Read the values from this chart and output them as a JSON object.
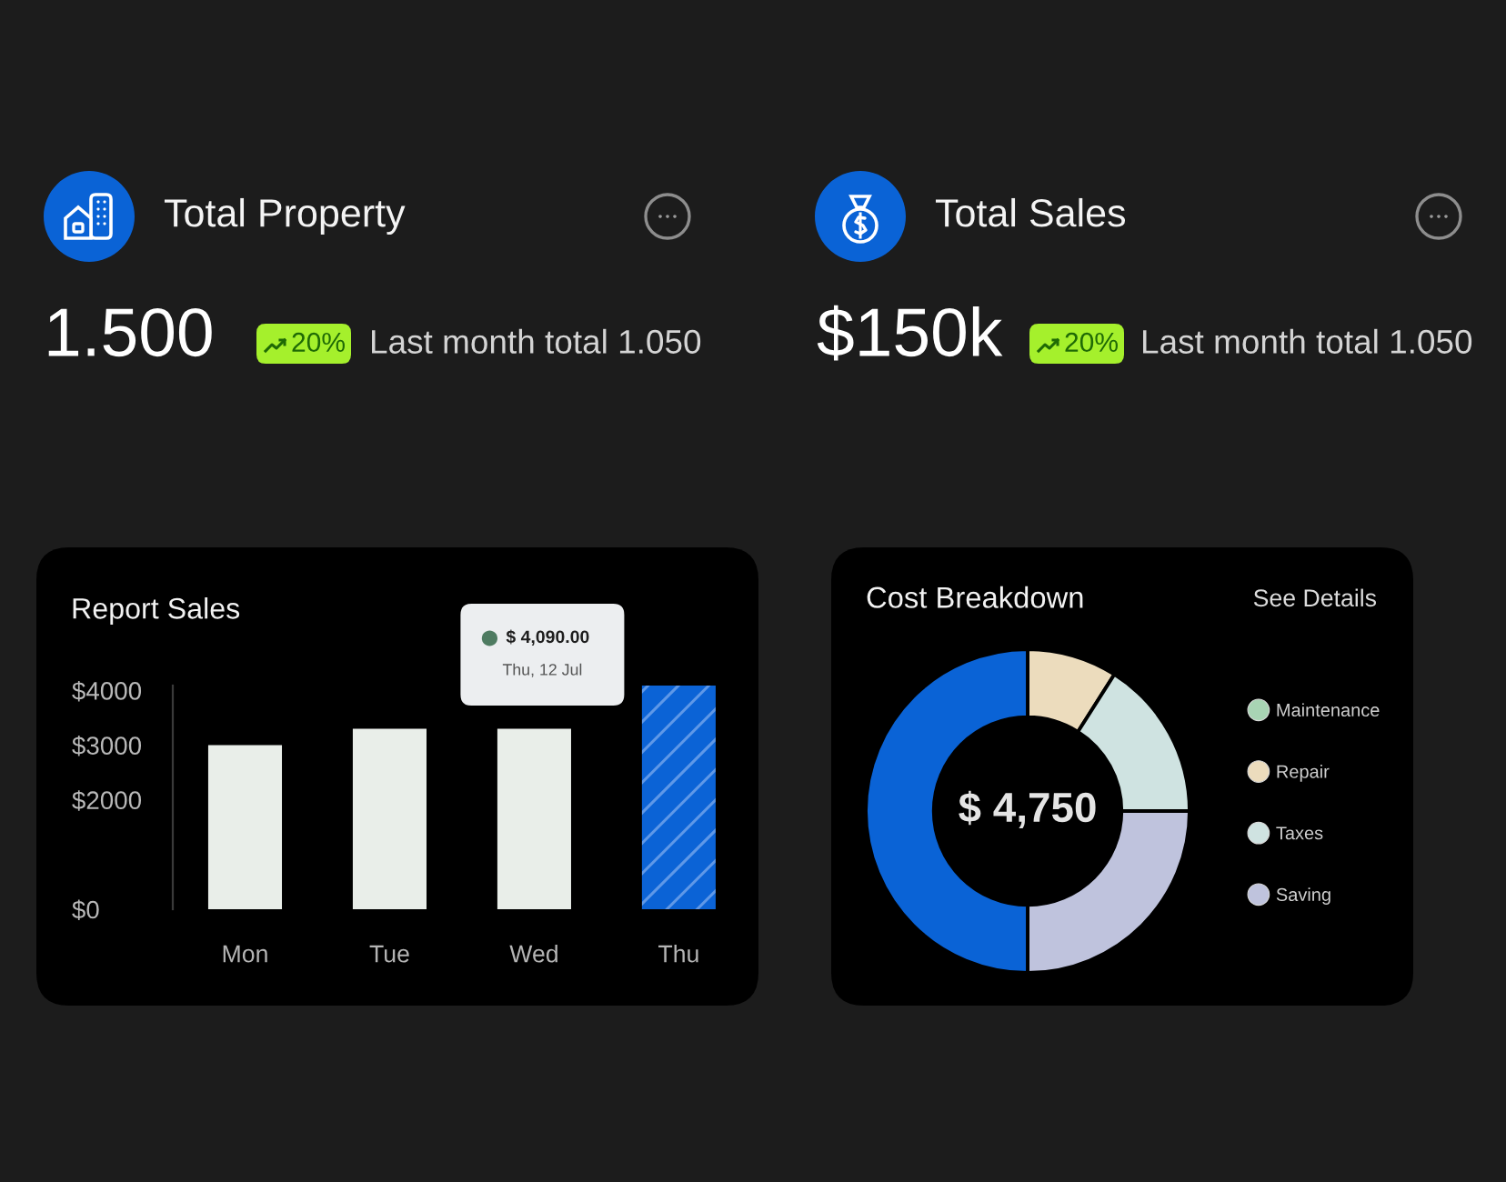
{
  "chart_data": [
    {
      "type": "other",
      "title": "Total Property",
      "annotations": [
        "1.500",
        "20%",
        "Last month total 1.050"
      ]
    },
    {
      "type": "other",
      "title": "Total Sales",
      "annotations": [
        "$150k",
        "20%",
        "Last month total 1.050"
      ]
    },
    {
      "type": "bar",
      "title": "Report Sales",
      "categories": [
        "Mon",
        "Tue",
        "Wed",
        "Thu"
      ],
      "values": [
        3000,
        3300,
        3300,
        4090
      ],
      "colors": [
        "#e9eee9",
        "#e9eee9",
        "#e9eee9",
        "#0b63d6"
      ],
      "ylim": [
        0,
        4090
      ],
      "yticks": [
        {
          "value": 0,
          "label": "$0"
        },
        {
          "value": 2000,
          "label": "$2000"
        },
        {
          "value": 3000,
          "label": "$3000"
        },
        {
          "value": 4000,
          "label": "$4000"
        }
      ],
      "annotations": [
        "$ 4,090.00",
        "Thu, 12 Jul"
      ]
    },
    {
      "type": "donut",
      "title": "Cost Breakdown",
      "categories": [
        "Maintenance",
        "Repair",
        "Taxes",
        "Saving",
        null
      ],
      "values": [
        null,
        9,
        16,
        25,
        50
      ],
      "colors": [
        "#a8d4b4",
        "#ecdcbd",
        "#cfe3e1",
        "#bfc3dd",
        "#0a63d6"
      ],
      "legend": "right",
      "annotations": [
        "See Details",
        "$ 4,750"
      ]
    }
  ]
}
